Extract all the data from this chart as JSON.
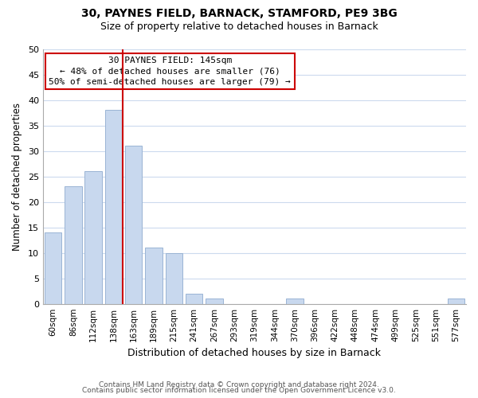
{
  "title1": "30, PAYNES FIELD, BARNACK, STAMFORD, PE9 3BG",
  "title2": "Size of property relative to detached houses in Barnack",
  "xlabel": "Distribution of detached houses by size in Barnack",
  "ylabel": "Number of detached properties",
  "bar_labels": [
    "60sqm",
    "86sqm",
    "112sqm",
    "138sqm",
    "163sqm",
    "189sqm",
    "215sqm",
    "241sqm",
    "267sqm",
    "293sqm",
    "319sqm",
    "344sqm",
    "370sqm",
    "396sqm",
    "422sqm",
    "448sqm",
    "474sqm",
    "499sqm",
    "525sqm",
    "551sqm",
    "577sqm"
  ],
  "bar_values": [
    14,
    23,
    26,
    38,
    31,
    11,
    10,
    2,
    1,
    0,
    0,
    0,
    1,
    0,
    0,
    0,
    0,
    0,
    0,
    0,
    1
  ],
  "bar_color": "#c8d8ee",
  "bar_edge_color": "#9ab4d4",
  "vline_color": "#cc0000",
  "vline_pos": 3.45,
  "annotation_title": "30 PAYNES FIELD: 145sqm",
  "annotation_line1": "← 48% of detached houses are smaller (76)",
  "annotation_line2": "50% of semi-detached houses are larger (79) →",
  "annotation_box_color": "#ffffff",
  "annotation_box_edge": "#cc0000",
  "ylim": [
    0,
    50
  ],
  "yticks": [
    0,
    5,
    10,
    15,
    20,
    25,
    30,
    35,
    40,
    45,
    50
  ],
  "footer1": "Contains HM Land Registry data © Crown copyright and database right 2024.",
  "footer2": "Contains public sector information licensed under the Open Government Licence v3.0.",
  "background_color": "#ffffff",
  "grid_color": "#ccdaee"
}
